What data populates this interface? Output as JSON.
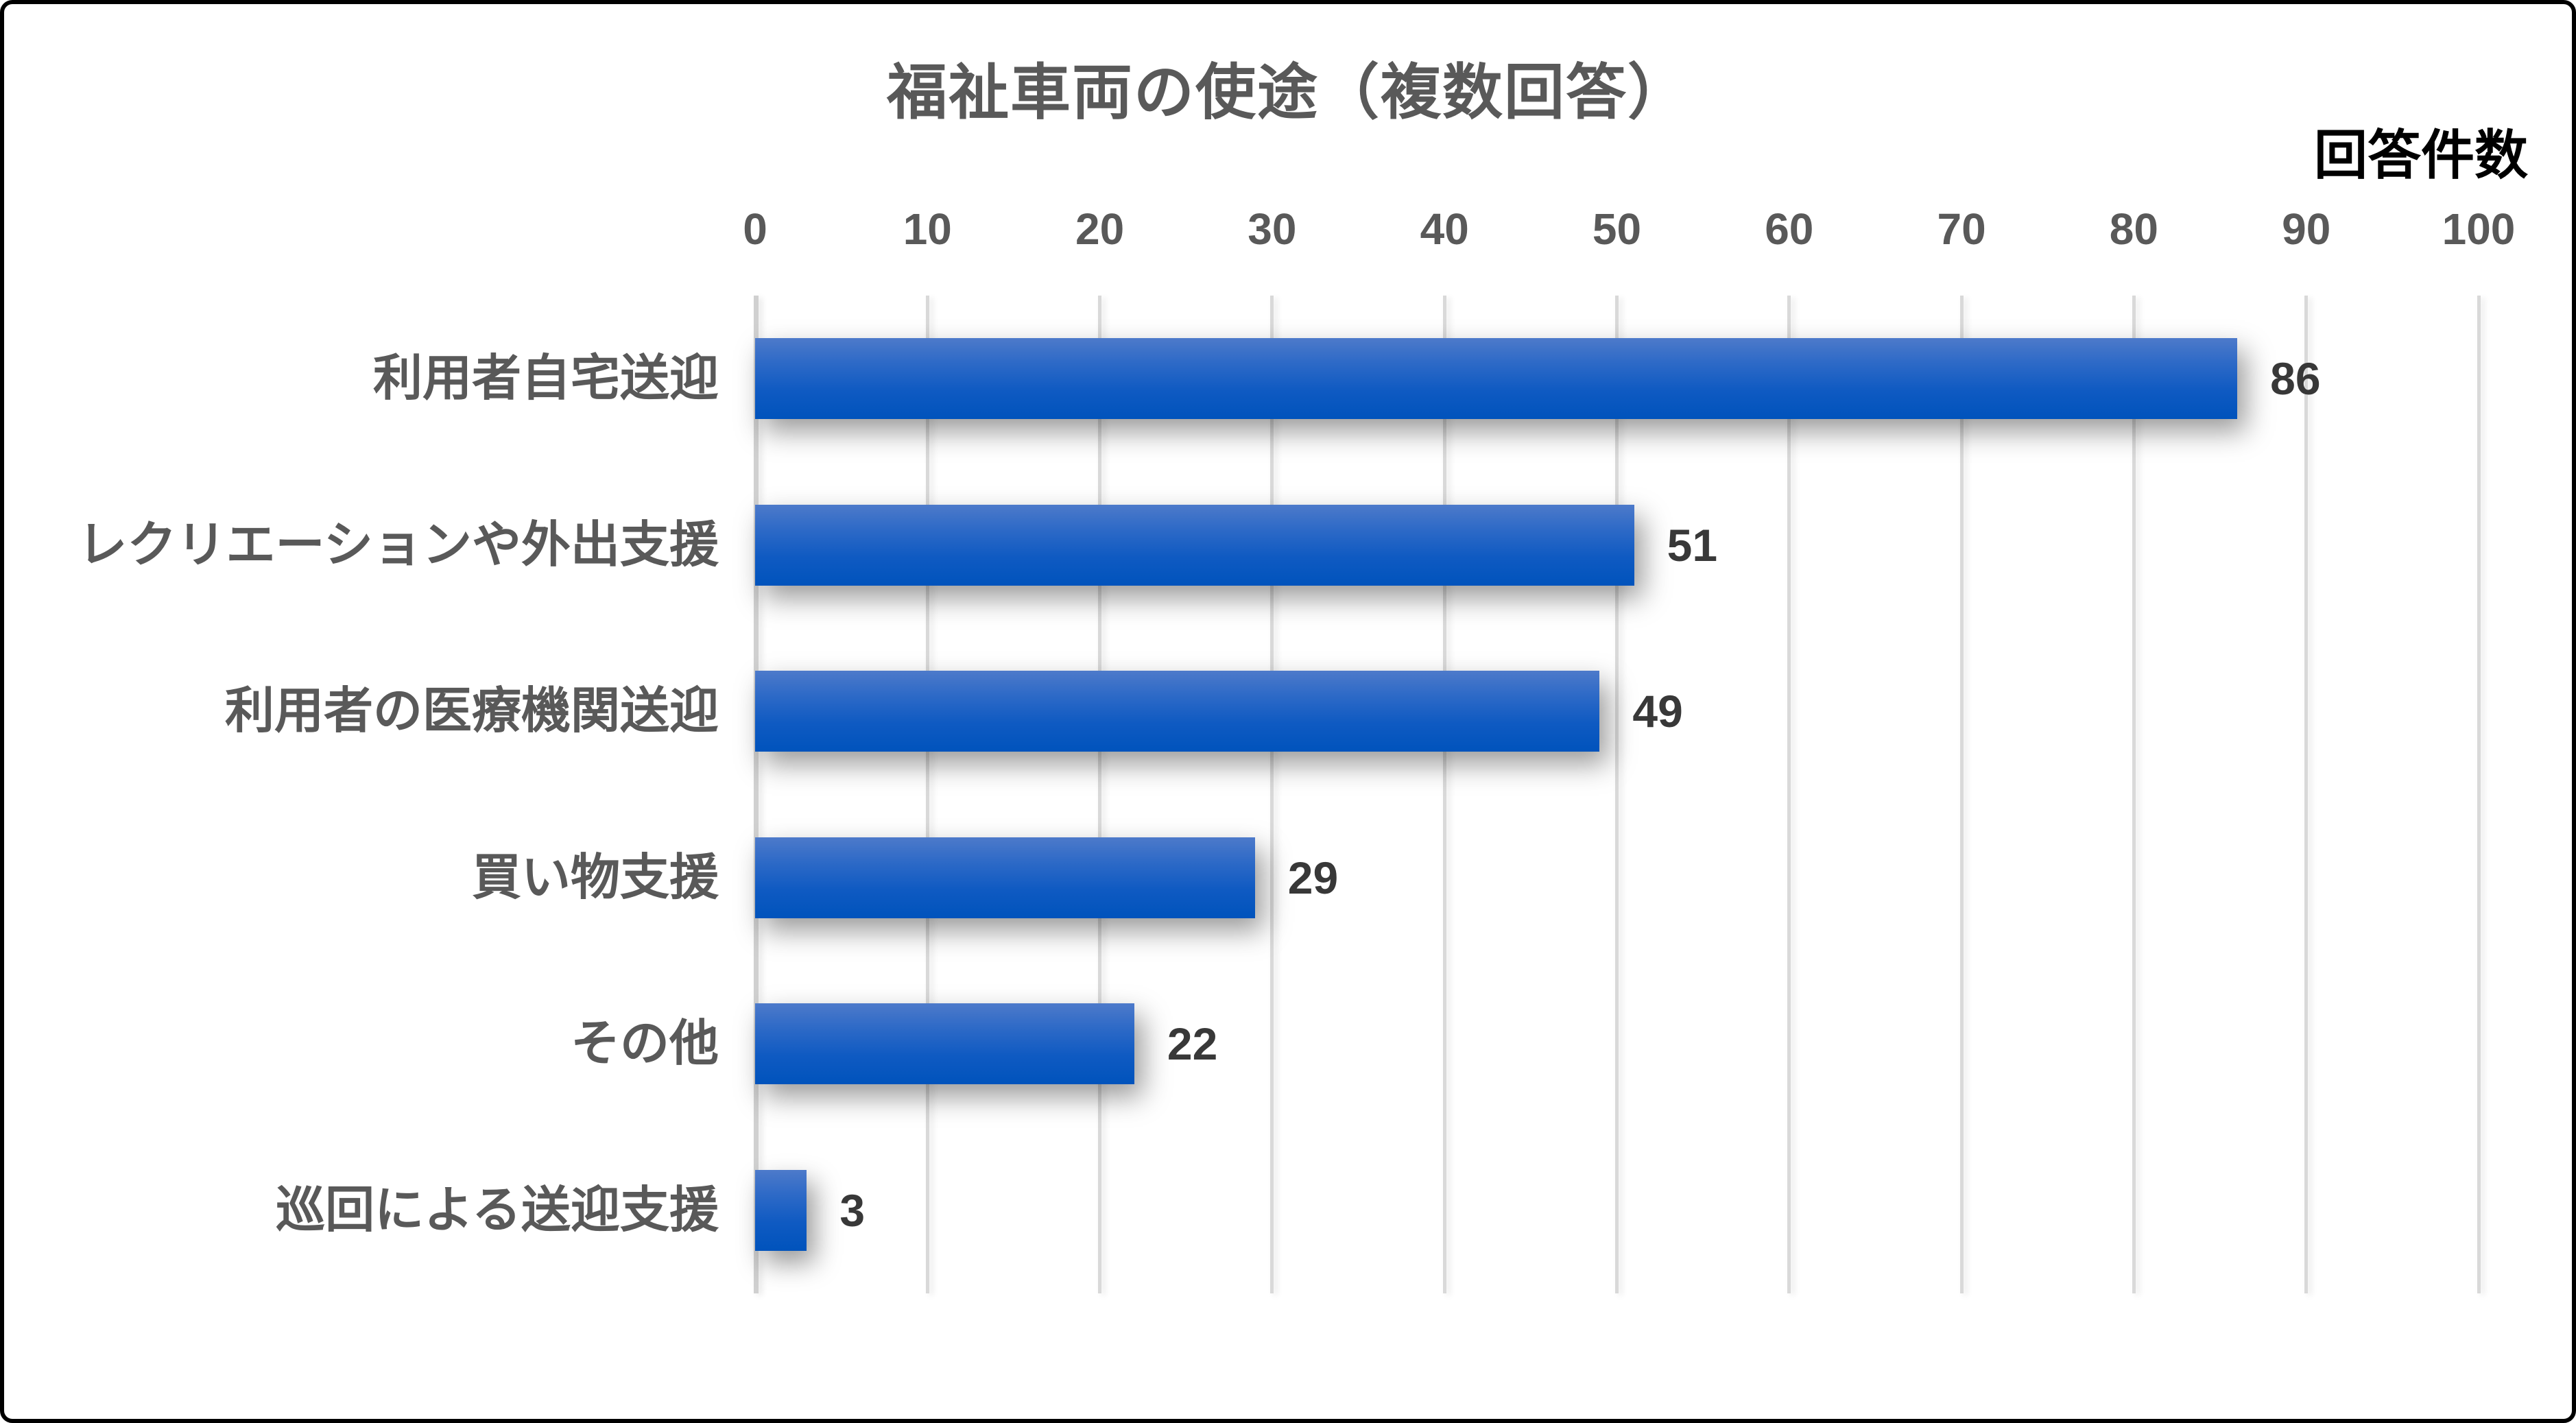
{
  "chart_data": {
    "type": "bar",
    "orientation": "horizontal",
    "title": "福祉車両の使途（複数回答）",
    "axis_unit_label": "回答件数",
    "categories": [
      "利用者自宅送迎",
      "レクリエーションや外出支援",
      "利用者の医療機関送迎",
      "買い物支援",
      "その他",
      "巡回による送迎支援"
    ],
    "values": [
      86,
      51,
      49,
      29,
      22,
      3
    ],
    "xlim": [
      0,
      100
    ],
    "x_ticks": [
      0,
      10,
      20,
      30,
      40,
      50,
      60,
      70,
      80,
      90,
      100
    ],
    "grid": true,
    "legend": "none",
    "colors": {
      "bar_gradient_top": "#4d7aca",
      "bar_gradient_bottom": "#0053bc",
      "grid_color": "#d9d9d9",
      "title_color": "#595959",
      "tick_color": "#595959",
      "value_label_color": "#383838",
      "axis_unit_color": "#000000"
    }
  }
}
